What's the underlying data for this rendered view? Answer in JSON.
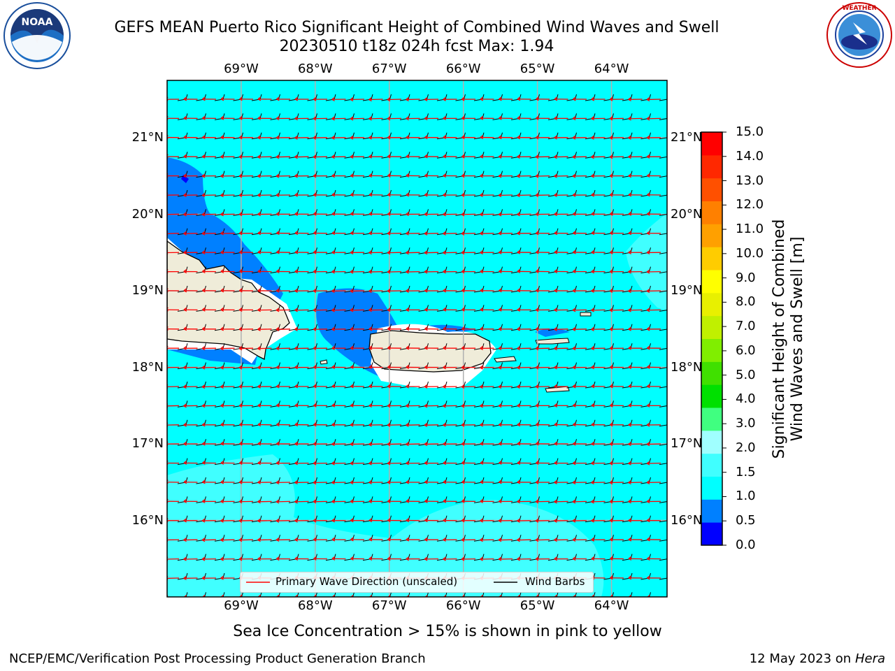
{
  "title": {
    "line1": "GEFS MEAN Puerto Rico Significant Height of Combined Wind Waves and Swell",
    "line2": "20230510 t18z 024h fcst   Max: 1.94"
  },
  "map": {
    "lon_labels": [
      "69°W",
      "68°W",
      "67°W",
      "66°W",
      "65°W",
      "64°W"
    ],
    "lon_values": [
      -69,
      -68,
      -67,
      -66,
      -65,
      -64
    ],
    "lat_labels": [
      "21°N",
      "20°N",
      "19°N",
      "18°N",
      "17°N",
      "16°N"
    ],
    "lat_values": [
      21,
      20,
      19,
      18,
      17,
      16
    ],
    "extent": {
      "lon_min": -70,
      "lon_max": -63.25,
      "lat_min": 15,
      "lat_max": 21.75
    }
  },
  "legend": {
    "items": [
      {
        "label": "Primary Wave Direction (unscaled)",
        "color": "#ff0000"
      },
      {
        "label": "Wind Barbs",
        "color": "#000000"
      }
    ]
  },
  "colorbar": {
    "title_line1": "Significant Height of Combined",
    "title_line2": "Wind Waves and Swell [m]",
    "ticks": [
      "0.0",
      "0.5",
      "1.0",
      "1.5",
      "2.0",
      "3.0",
      "4.0",
      "5.0",
      "6.0",
      "7.0",
      "8.0",
      "9.0",
      "10.0",
      "11.0",
      "12.0",
      "13.0",
      "14.0",
      "15.0"
    ],
    "colors": [
      "#0000ff",
      "#0080ff",
      "#00ffff",
      "#40ffff",
      "#a0ffff",
      "#40ff80",
      "#00e000",
      "#40e000",
      "#80ee00",
      "#c0f000",
      "#e8f000",
      "#ffff00",
      "#ffcc00",
      "#ffa000",
      "#ff8000",
      "#ff5000",
      "#ff2800",
      "#ff0000"
    ]
  },
  "note": "Sea Ice Concentration > 15% is shown in pink to yellow",
  "footer": {
    "left": "NCEP/EMC/Verification Post Processing Product Generation Branch",
    "right_date": "12 May 2023 on",
    "right_host": "Hera"
  },
  "logos": {
    "left": {
      "text": "NOAA",
      "ring_text": "NATIONAL OCEANIC AND ATMOSPHERIC ADMINISTRATION"
    },
    "right": {
      "ring_text": "NATIONAL WEATHER SERVICE"
    }
  }
}
